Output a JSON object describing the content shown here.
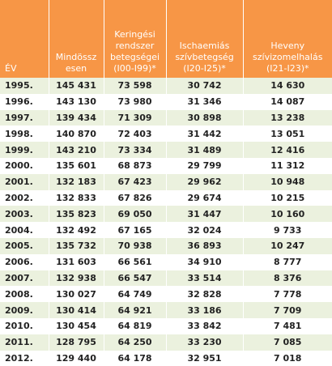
{
  "table": {
    "header": [
      [
        "ÉV"
      ],
      [
        "Mindössz",
        "esen"
      ],
      [
        "Keringési",
        "rendszer",
        "betegségei",
        "(I00-I99)*"
      ],
      [
        "Ischaemiás",
        "szívbetegség",
        "(I20-I25)*"
      ],
      [
        "Heveny",
        "szívizomelhalás",
        "(I21-I23)*"
      ]
    ],
    "rows": [
      [
        "1995.",
        "145 431",
        "73 598",
        "30 742",
        "14 630"
      ],
      [
        "1996.",
        "143 130",
        "73 980",
        "31 346",
        "14 087"
      ],
      [
        "1997.",
        "139 434",
        "71 309",
        "30 898",
        "13 238"
      ],
      [
        "1998.",
        "140 870",
        "72 403",
        "31 442",
        "13 051"
      ],
      [
        "1999.",
        "143 210",
        "73 334",
        "31 489",
        "12 416"
      ],
      [
        "2000.",
        "135 601",
        "68 873",
        "29 799",
        "11 312"
      ],
      [
        "2001.",
        "132 183",
        "67 423",
        "29 962",
        "10 948"
      ],
      [
        "2002.",
        "132 833",
        "67 826",
        "29 674",
        "10 215"
      ],
      [
        "2003.",
        "135 823",
        "69 050",
        "31 447",
        "10 160"
      ],
      [
        "2004.",
        "132 492",
        "67 165",
        "32 024",
        "9 733"
      ],
      [
        "2005.",
        "135 732",
        "70 938",
        "36 893",
        "10 247"
      ],
      [
        "2006.",
        "131 603",
        "66 561",
        "34 910",
        "8 777"
      ],
      [
        "2007.",
        "132 938",
        "66 547",
        "33 514",
        "8 376"
      ],
      [
        "2008.",
        "130 027",
        "64 749",
        "32 828",
        "7 778"
      ],
      [
        "2009.",
        "130 414",
        "64 921",
        "33 186",
        "7 709"
      ],
      [
        "2010.",
        "130 454",
        "64 819",
        "33 842",
        "7 481"
      ],
      [
        "2011.",
        "128 795",
        "64 250",
        "33 230",
        "7 085"
      ],
      [
        "2012.",
        "129 440",
        "64 178",
        "32 951",
        "7 018"
      ]
    ]
  }
}
